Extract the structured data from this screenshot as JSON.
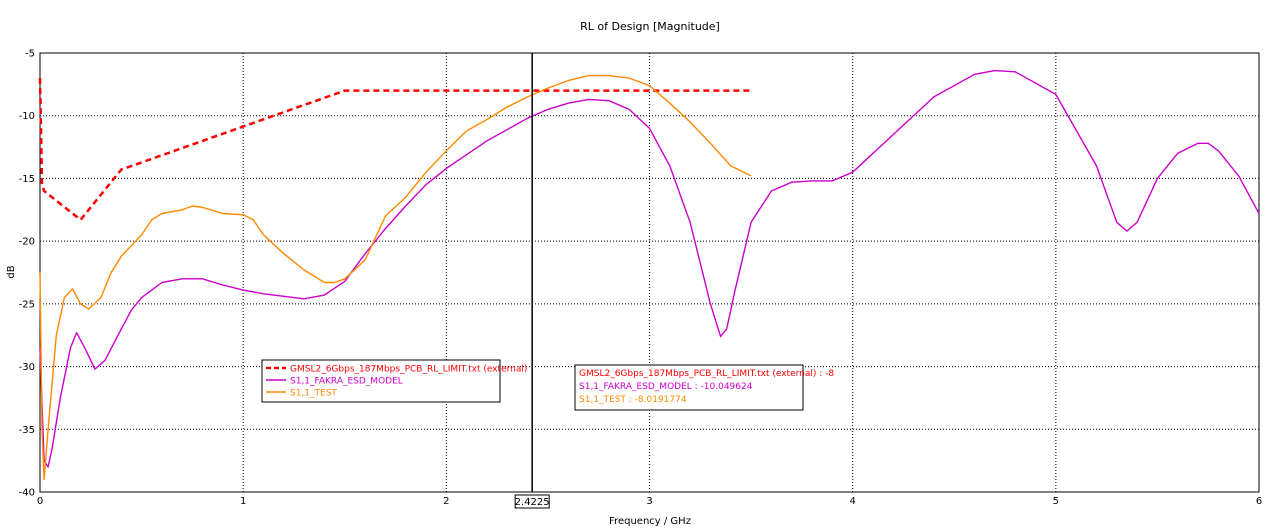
{
  "chart_data": {
    "type": "line",
    "title": "RL of Design [Magnitude]",
    "xlabel": "Frequency / GHz",
    "ylabel": "dB",
    "xlim": [
      0,
      6
    ],
    "ylim": [
      -40,
      -5
    ],
    "xticks": [
      "0",
      "1",
      "2",
      "3",
      "4",
      "5",
      "6"
    ],
    "yticks": [
      "-5",
      "-10",
      "-15",
      "-20",
      "-25",
      "-30",
      "-35",
      "-40"
    ],
    "grid": true,
    "legend_position": "center-left",
    "marker": {
      "x": 2.4225,
      "label": "2.4225",
      "readouts": [
        "GMSL2_6Gbps_187Mbps_PCB_RL_LIMIT.txt (external) : -8",
        "S1,1_FAKRA_ESD_MODEL : -10.049624",
        "S1,1_TEST : -8.0191774"
      ]
    },
    "series": [
      {
        "name": "GMSL2_6Gbps_187Mbps_PCB_RL_LIMIT.txt (external)",
        "color": "#ff0000",
        "dash": true,
        "x": [
          0.0,
          0.005,
          0.01,
          0.02,
          0.2,
          0.4,
          1.5,
          3.5
        ],
        "y": [
          -7.0,
          -11.0,
          -15.5,
          -16.0,
          -18.3,
          -14.3,
          -8.0,
          -8.0
        ]
      },
      {
        "name": "S1,1_FAKRA_ESD_MODEL",
        "color": "#cc00cc",
        "dash": false,
        "x": [
          0.0,
          0.02,
          0.04,
          0.06,
          0.1,
          0.15,
          0.18,
          0.22,
          0.27,
          0.32,
          0.4,
          0.45,
          0.5,
          0.6,
          0.7,
          0.75,
          0.8,
          0.9,
          1.0,
          1.1,
          1.2,
          1.3,
          1.4,
          1.5,
          1.6,
          1.7,
          1.8,
          1.9,
          2.0,
          2.2,
          2.4,
          2.5,
          2.6,
          2.7,
          2.8,
          2.9,
          3.0,
          3.1,
          3.2,
          3.3,
          3.35,
          3.38,
          3.42,
          3.5,
          3.6,
          3.7,
          3.8,
          3.9,
          4.0,
          4.2,
          4.4,
          4.6,
          4.7,
          4.8,
          5.0,
          5.2,
          5.3,
          5.35,
          5.4,
          5.5,
          5.6,
          5.7,
          5.75,
          5.8,
          5.9,
          6.0
        ],
        "y": [
          -28.5,
          -37.5,
          -38.0,
          -36.5,
          -32.5,
          -28.5,
          -27.3,
          -28.5,
          -30.2,
          -29.5,
          -27.0,
          -25.5,
          -24.5,
          -23.3,
          -23.0,
          -23.0,
          -23.0,
          -23.5,
          -23.9,
          -24.2,
          -24.4,
          -24.6,
          -24.3,
          -23.2,
          -21.0,
          -19.0,
          -17.2,
          -15.5,
          -14.2,
          -12.0,
          -10.2,
          -9.5,
          -9.0,
          -8.7,
          -8.8,
          -9.5,
          -11.0,
          -14.0,
          -18.5,
          -25.0,
          -27.6,
          -27.0,
          -24.0,
          -18.5,
          -16.0,
          -15.3,
          -15.2,
          -15.2,
          -14.5,
          -11.5,
          -8.5,
          -6.7,
          -6.4,
          -6.5,
          -8.3,
          -14.0,
          -18.5,
          -19.2,
          -18.5,
          -15.0,
          -13.0,
          -12.2,
          -12.2,
          -12.8,
          -14.8,
          -17.8
        ]
      },
      {
        "name": "S1,1_TEST",
        "color": "#ff8800",
        "dash": false,
        "x": [
          0.0,
          0.01,
          0.02,
          0.04,
          0.08,
          0.12,
          0.16,
          0.2,
          0.24,
          0.3,
          0.35,
          0.4,
          0.5,
          0.55,
          0.6,
          0.7,
          0.75,
          0.8,
          0.9,
          1.0,
          1.05,
          1.1,
          1.2,
          1.3,
          1.4,
          1.45,
          1.5,
          1.6,
          1.7,
          1.8,
          1.9,
          2.0,
          2.1,
          2.2,
          2.3,
          2.4,
          2.5,
          2.6,
          2.7,
          2.8,
          2.9,
          3.0,
          3.1,
          3.2,
          3.3,
          3.4,
          3.5
        ],
        "y": [
          -22.5,
          -35.0,
          -39.0,
          -35.0,
          -27.5,
          -24.5,
          -23.8,
          -25.0,
          -25.4,
          -24.5,
          -22.5,
          -21.2,
          -19.5,
          -18.3,
          -17.8,
          -17.5,
          -17.2,
          -17.3,
          -17.8,
          -17.9,
          -18.3,
          -19.5,
          -21.0,
          -22.3,
          -23.3,
          -23.3,
          -23.0,
          -21.5,
          -18.0,
          -16.5,
          -14.5,
          -12.8,
          -11.2,
          -10.3,
          -9.3,
          -8.5,
          -7.8,
          -7.2,
          -6.8,
          -6.8,
          -7.0,
          -7.6,
          -9.0,
          -10.5,
          -12.2,
          -14.0,
          -14.8
        ]
      }
    ]
  }
}
